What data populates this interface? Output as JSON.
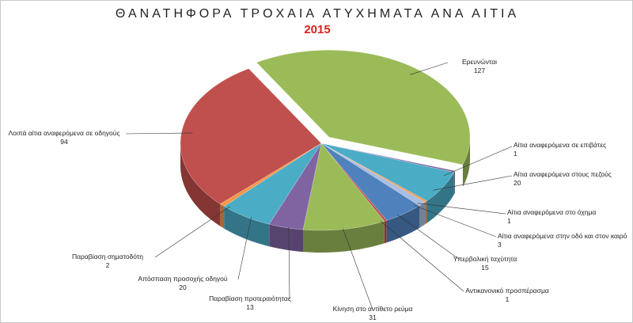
{
  "chart_data": {
    "type": "pie",
    "title": "ΘΑΝΑΤΗΦΟΡΑ ΤΡΟΧΑΙΑ ΑΤΥΧΗΜΑΤΑ ΑΝΑ ΑΙΤΙΑ",
    "subtitle": "2015",
    "categories": [
      "Ερευνώνται",
      "Αίτια αναφερόμενα σε επιβάτες",
      "Αίτια αναφερόμενα στους πεζούς",
      "Αίτια αναφερόμενα στο όχημα",
      "Αίτια αναφερόμενα στην οδό και στον καιρό",
      "Υπερβολική ταχύτητα",
      "Αντικανονικό προσπέρασμα",
      "Κίνηση στο αντίθετο ρεύμα",
      "Παραβίαση προτεραιότητας",
      "Απόσπαση προσοχής οδηγού",
      "Παραβίαση σηματοδότη",
      "Λοιπά αίτια αναφερόμενα σε οδηγούς"
    ],
    "values": [
      127,
      1,
      20,
      1,
      3,
      15,
      1,
      31,
      13,
      20,
      2,
      94
    ],
    "colors": [
      "#9bbb59",
      "#8064a2",
      "#4bacc6",
      "#f79646",
      "#a9bde0",
      "#4f81bd",
      "#c0504d",
      "#9bbb59",
      "#8064a2",
      "#4bacc6",
      "#f79646",
      "#c0504d"
    ]
  }
}
